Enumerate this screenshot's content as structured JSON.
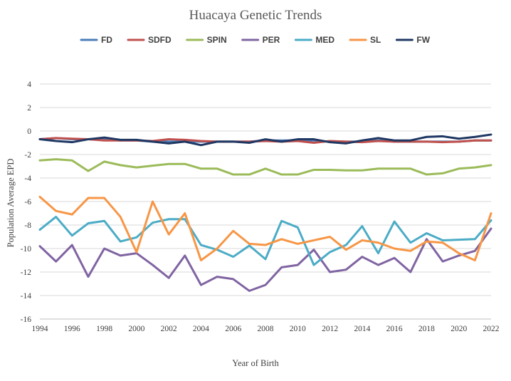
{
  "chart_data": {
    "type": "line",
    "title": "Huacaya Genetic Trends",
    "xlabel": "Year of Birth",
    "ylabel": "Population Average EPD",
    "xlim": [
      1994,
      2022
    ],
    "ylim": [
      -16,
      4
    ],
    "x_ticks": [
      "1994",
      "1996",
      "1998",
      "2000",
      "2002",
      "2004",
      "2006",
      "2008",
      "2010",
      "2012",
      "2014",
      "2016",
      "2018",
      "2020",
      "2022"
    ],
    "y_ticks": [
      "4",
      "2",
      "0",
      "-2",
      "-4",
      "-6",
      "-8",
      "-10",
      "-12",
      "-14",
      "-16"
    ],
    "legend_position": "top",
    "x": [
      1994,
      1995,
      1996,
      1997,
      1998,
      1999,
      2000,
      2001,
      2002,
      2003,
      2004,
      2005,
      2006,
      2007,
      2008,
      2009,
      2010,
      2011,
      2012,
      2013,
      2014,
      2015,
      2016,
      2017,
      2018,
      2019,
      2020,
      2021,
      2022
    ],
    "series": [
      {
        "name": "FD",
        "color": "#4a7ebb",
        "values": [
          -0.7,
          -0.6,
          -0.7,
          -0.7,
          -0.7,
          -0.8,
          -0.8,
          -0.9,
          -0.9,
          -0.9,
          -0.9,
          -0.9,
          -0.9,
          -0.9,
          -0.8,
          -0.8,
          -0.8,
          -0.8,
          -0.9,
          -0.9,
          -0.9,
          -0.8,
          -0.9,
          -0.9,
          -0.9,
          -0.9,
          -0.9,
          -0.8,
          -0.8
        ]
      },
      {
        "name": "SDFD",
        "color": "#c0504d",
        "values": [
          -0.7,
          -0.6,
          -0.65,
          -0.7,
          -0.8,
          -0.8,
          -0.8,
          -0.85,
          -0.7,
          -0.75,
          -0.85,
          -0.9,
          -0.9,
          -0.9,
          -0.85,
          -0.9,
          -0.85,
          -1.0,
          -0.85,
          -0.9,
          -0.95,
          -0.85,
          -0.9,
          -0.9,
          -0.9,
          -0.95,
          -0.9,
          -0.8,
          -0.8
        ]
      },
      {
        "name": "SPIN",
        "color": "#9bbb59",
        "values": [
          -2.5,
          -2.4,
          -2.5,
          -3.4,
          -2.6,
          -2.9,
          -3.1,
          -2.95,
          -2.8,
          -2.8,
          -3.2,
          -3.2,
          -3.7,
          -3.7,
          -3.2,
          -3.7,
          -3.7,
          -3.3,
          -3.3,
          -3.35,
          -3.35,
          -3.2,
          -3.2,
          -3.2,
          -3.7,
          -3.6,
          -3.2,
          -3.1,
          -2.9
        ]
      },
      {
        "name": "PER",
        "color": "#8064a2",
        "values": [
          -9.8,
          -11.1,
          -9.7,
          -12.4,
          -10.0,
          -10.6,
          -10.4,
          -11.4,
          -12.5,
          -10.6,
          -13.1,
          -12.4,
          -12.6,
          -13.6,
          -13.1,
          -11.6,
          -11.4,
          -10.1,
          -12.0,
          -11.8,
          -10.7,
          -11.4,
          -10.8,
          -12.0,
          -9.2,
          -11.1,
          -10.6,
          -10.2,
          -8.3
        ]
      },
      {
        "name": "MED",
        "color": "#4bacc6",
        "values": [
          -8.4,
          -7.3,
          -8.9,
          -7.85,
          -7.65,
          -9.4,
          -9.05,
          -7.8,
          -7.5,
          -7.5,
          -9.7,
          -10.1,
          -10.7,
          -9.75,
          -10.9,
          -7.65,
          -8.2,
          -11.4,
          -10.3,
          -9.7,
          -8.1,
          -10.4,
          -7.7,
          -9.5,
          -8.7,
          -9.3,
          -9.25,
          -9.2,
          -7.6
        ]
      },
      {
        "name": "SL",
        "color": "#f79646",
        "values": [
          -5.6,
          -6.8,
          -7.1,
          -5.7,
          -5.7,
          -7.3,
          -10.3,
          -6.0,
          -8.8,
          -7.0,
          -11.0,
          -10.0,
          -8.5,
          -9.6,
          -9.7,
          -9.2,
          -9.6,
          -9.3,
          -9.0,
          -10.1,
          -9.3,
          -9.5,
          -10.0,
          -10.2,
          -9.4,
          -9.5,
          -10.4,
          -11.0,
          -7.0
        ]
      },
      {
        "name": "FW",
        "color": "#1f3864",
        "values": [
          -0.7,
          -0.85,
          -0.95,
          -0.7,
          -0.55,
          -0.75,
          -0.75,
          -0.9,
          -1.05,
          -0.9,
          -1.2,
          -0.9,
          -0.9,
          -1.0,
          -0.7,
          -0.9,
          -0.7,
          -0.7,
          -0.95,
          -1.05,
          -0.8,
          -0.6,
          -0.8,
          -0.8,
          -0.5,
          -0.45,
          -0.65,
          -0.5,
          -0.3
        ]
      }
    ]
  }
}
